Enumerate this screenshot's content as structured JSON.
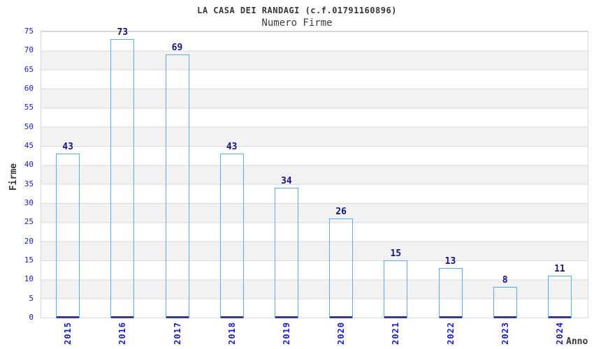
{
  "chart_data": {
    "type": "bar",
    "title": "LA CASA DEI RANDAGI (c.f.01791160896)",
    "subtitle": "Numero Firme",
    "xlabel": "Anno",
    "ylabel": "Firme",
    "categories": [
      "2015",
      "2016",
      "2017",
      "2018",
      "2019",
      "2020",
      "2021",
      "2022",
      "2023",
      "2024"
    ],
    "values": [
      43,
      73,
      69,
      43,
      34,
      26,
      15,
      13,
      8,
      11
    ],
    "ylim": [
      0,
      75
    ],
    "ytick_step": 5,
    "y_ticks": [
      0,
      5,
      10,
      15,
      20,
      25,
      30,
      35,
      40,
      45,
      50,
      55,
      60,
      65,
      70,
      75
    ],
    "grid": "horizontal-lines-with-alternating-bands",
    "legend_position": "none",
    "value_labels": "above-bars",
    "x_label_rotation": 90,
    "colors": {
      "tick_label": "#1a1ace",
      "value_label": "#14147e",
      "bar_dark": "#1a1c82",
      "bar_highlight": "#ccd6f0",
      "bar_border": "#5ea9ea",
      "band_gray": "#f2f2f2",
      "grid_line": "#d9d9d9",
      "title_text": "#363636"
    }
  }
}
